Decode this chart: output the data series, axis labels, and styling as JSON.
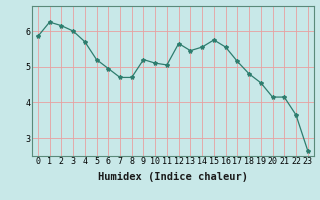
{
  "x": [
    0,
    1,
    2,
    3,
    4,
    5,
    6,
    7,
    8,
    9,
    10,
    11,
    12,
    13,
    14,
    15,
    16,
    17,
    18,
    19,
    20,
    21,
    22,
    23
  ],
  "y": [
    5.85,
    6.25,
    6.15,
    6.0,
    5.7,
    5.2,
    4.95,
    4.7,
    4.7,
    5.2,
    5.1,
    5.05,
    5.65,
    5.45,
    5.55,
    5.75,
    5.55,
    5.15,
    4.8,
    4.55,
    4.15,
    4.15,
    3.65,
    2.65
  ],
  "line_color": "#2e7d6e",
  "marker": "*",
  "marker_size": 3,
  "bg_color": "#c8e8e8",
  "grid_color": "#e8a0a0",
  "xlabel": "Humidex (Indice chaleur)",
  "xlabel_fontsize": 7.5,
  "tick_fontsize": 6,
  "ylim": [
    2.5,
    6.7
  ],
  "yticks": [
    3,
    4,
    5,
    6
  ],
  "xticks": [
    0,
    1,
    2,
    3,
    4,
    5,
    6,
    7,
    8,
    9,
    10,
    11,
    12,
    13,
    14,
    15,
    16,
    17,
    18,
    19,
    20,
    21,
    22,
    23
  ],
  "spine_color": "#5a8a7a",
  "fig_width": 3.2,
  "fig_height": 2.0,
  "dpi": 100
}
